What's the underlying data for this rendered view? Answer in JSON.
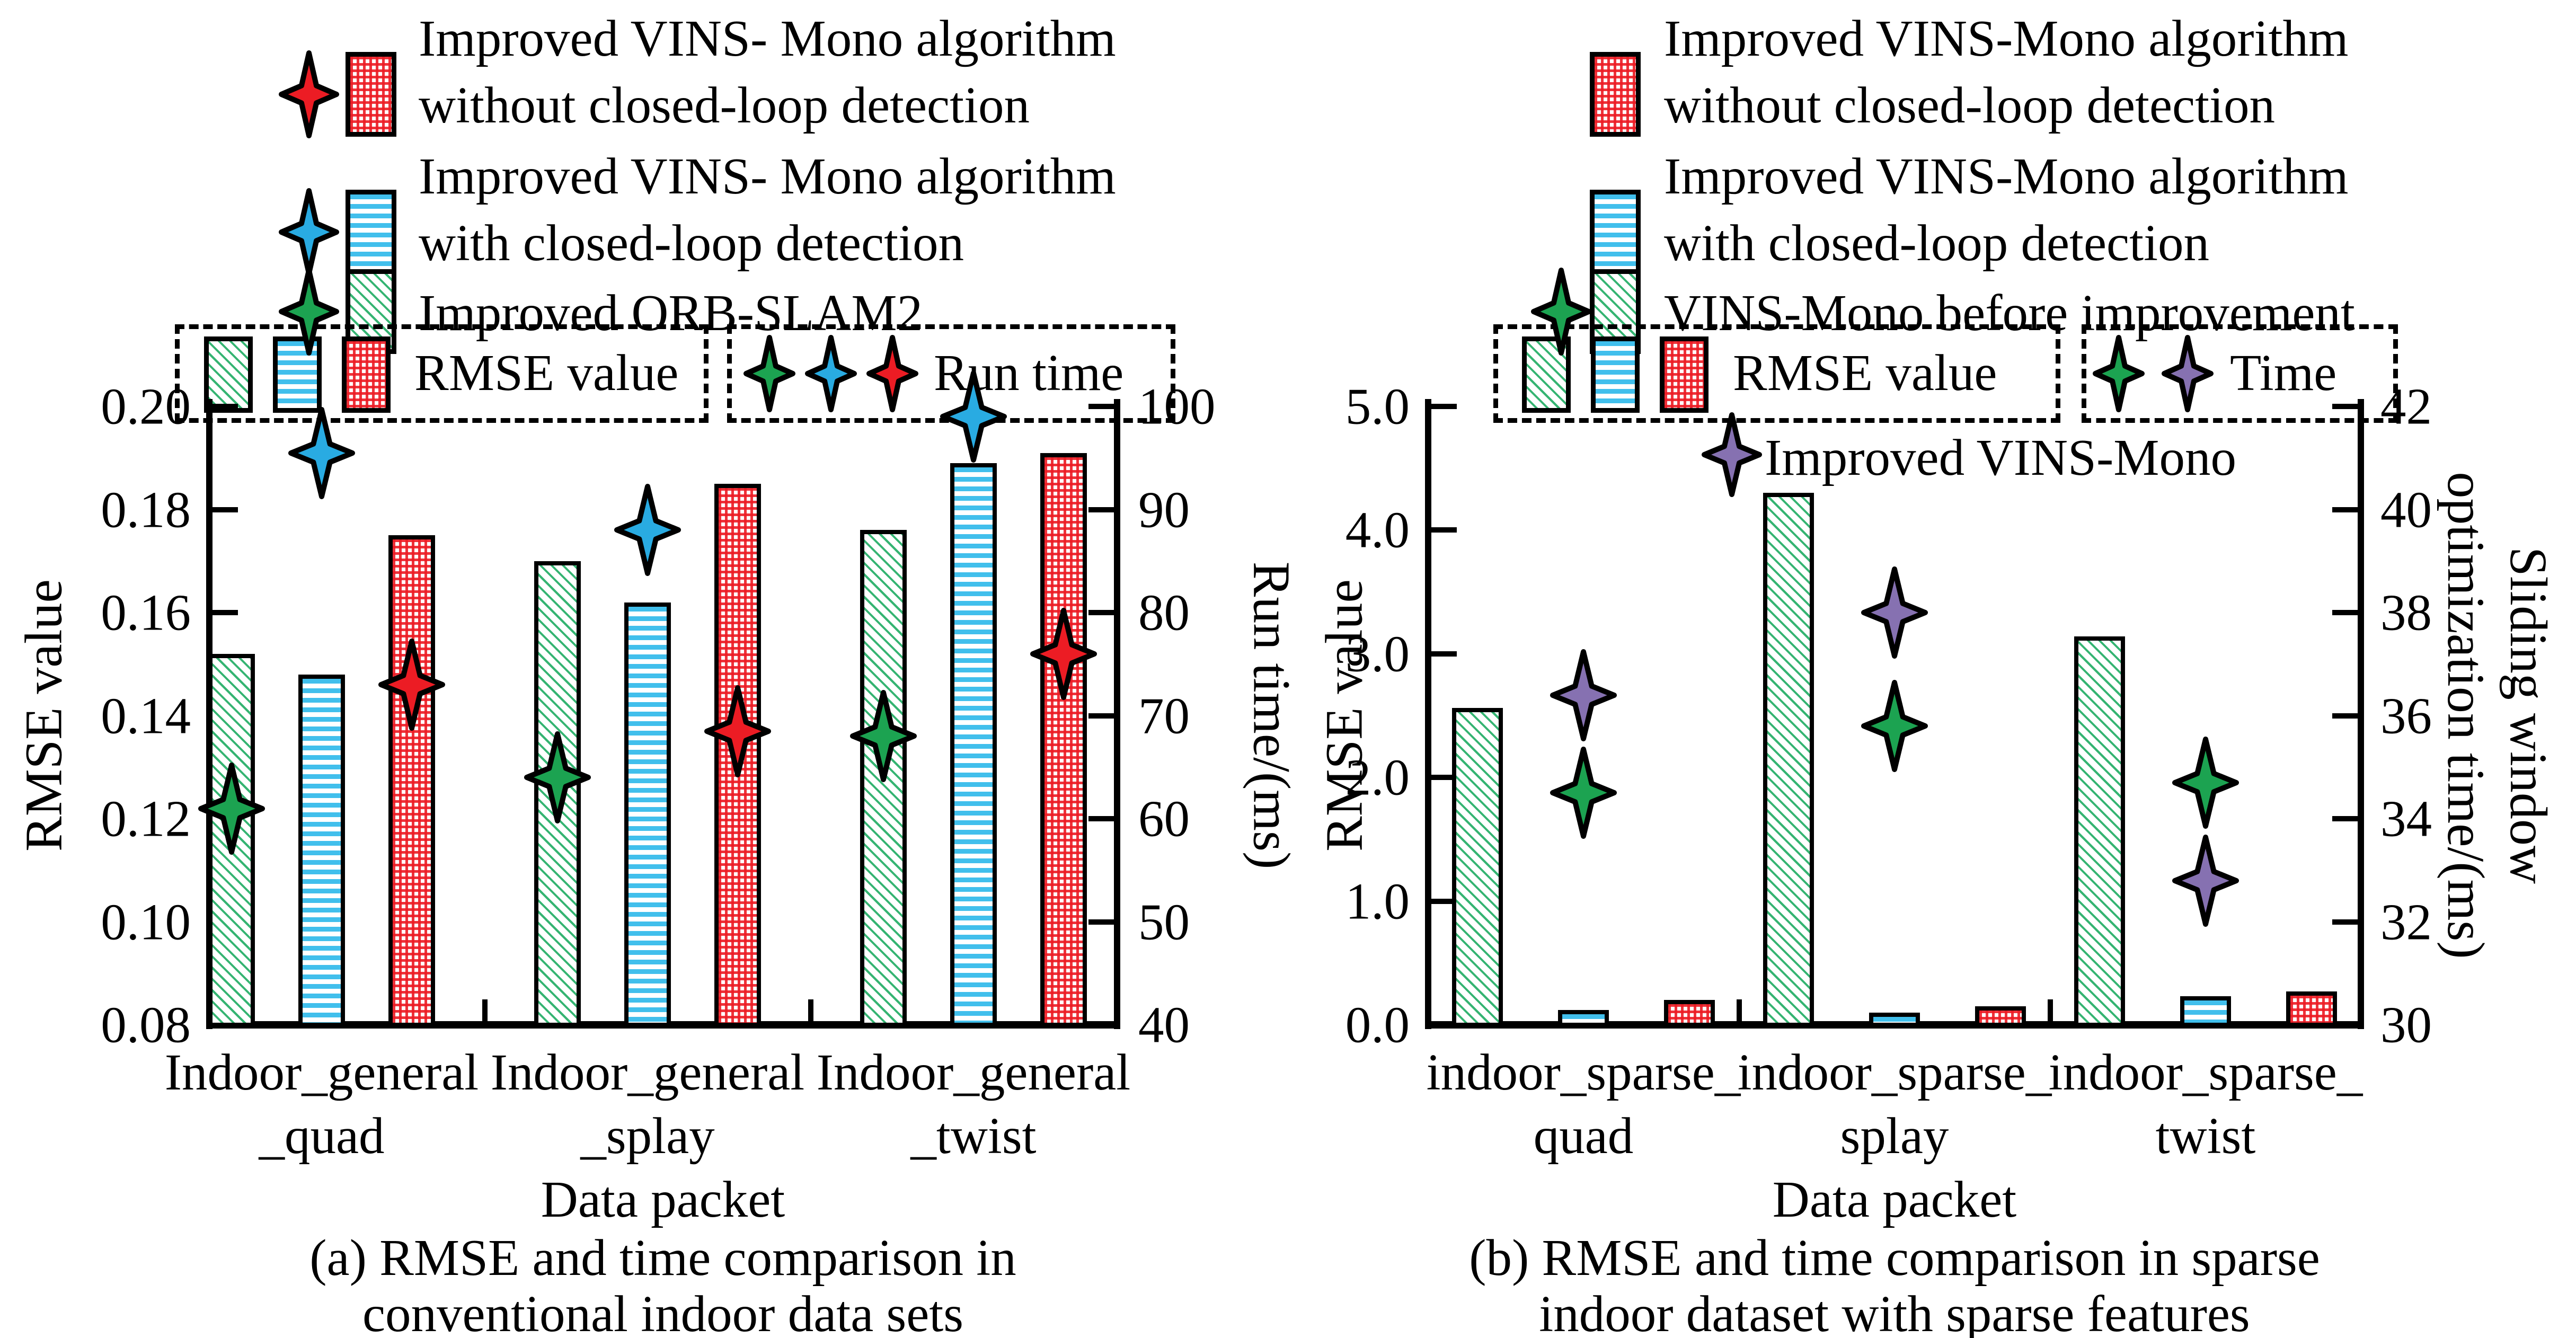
{
  "figure": {
    "background": "#ffffff",
    "colors": {
      "green": "#1ca351",
      "cyan": "#35b9e9",
      "red": "#ec1c24",
      "blue": "#29abe2",
      "purple": "#8671b1"
    }
  },
  "panel_a": {
    "legend": [
      {
        "symbol": "red-star-and-red-crosshatch-swatch",
        "line1": "Improved VINS- Mono algorithm",
        "line2": "without closed-loop detection"
      },
      {
        "symbol": "blue-star-and-cyan-swatch",
        "line1": "Improved VINS- Mono algorithm",
        "line2": "with closed-loop detection"
      },
      {
        "symbol": "green-star-and-green-swatch",
        "line1": "Improved ORB-SLAM2",
        "line2": ""
      }
    ],
    "rmse_box_label": "RMSE value",
    "time_box_label": "Run time",
    "caption_line1": "(a) RMSE and time comparison in",
    "caption_line2": "conventional indoor data sets"
  },
  "panel_b": {
    "legend": [
      {
        "symbol": "red-crosshatch-swatch",
        "line1": "Improved VINS-Mono algorithm",
        "line2": "without closed-loop detection"
      },
      {
        "symbol": "cyan-swatch",
        "line1": "Improved VINS-Mono algorithm",
        "line2": "with closed-loop detection"
      },
      {
        "symbol": "green-star-and-green-swatch",
        "line1": "VINS-Mono before improvement",
        "line2": ""
      }
    ],
    "rmse_box_label": "RMSE value",
    "time_box_label": "Time",
    "purple_star_label": "Improved VINS-Mono",
    "caption_line1": "(b) RMSE and time comparison in sparse",
    "caption_line2": "indoor dataset with sparse features"
  },
  "chart_data": [
    {
      "type": "bar",
      "panel": "a",
      "title": "(a) RMSE and time comparison in conventional indoor data sets",
      "categories": [
        "Indoor_general_quad",
        "Indoor_general_splay",
        "Indoor_general_twist"
      ],
      "xtick_lines": [
        [
          "Indoor_general",
          "_quad"
        ],
        [
          "Indoor_general",
          "_splay"
        ],
        [
          "Indoor_general",
          "_twist"
        ]
      ],
      "xlabel": "Data packet",
      "ylabel_left": "RMSE value",
      "ylabel_right": "Run time/(ms)",
      "ylim_left": [
        0.08,
        0.2
      ],
      "ylim_right": [
        40,
        100
      ],
      "yticks_left": [
        "0.20",
        "0.18",
        "0.16",
        "0.14",
        "0.12",
        "0.10",
        "0.08"
      ],
      "yticks_right": [
        "100",
        "90",
        "80",
        "70",
        "60",
        "50",
        "40"
      ],
      "grid": false,
      "bar_series": [
        {
          "name": "Improved ORB-SLAM2 (RMSE value)",
          "style": "green-diagonal",
          "axis": "left",
          "values": [
            0.152,
            0.17,
            0.176
          ]
        },
        {
          "name": "Improved VINS- Mono algorithm with closed-loop detection (RMSE value)",
          "style": "cyan-horizontal",
          "axis": "left",
          "values": [
            0.148,
            0.162,
            0.189
          ]
        },
        {
          "name": "Improved VINS- Mono algorithm without closed-loop detection (RMSE value)",
          "style": "red-crosshatch",
          "axis": "left",
          "values": [
            0.175,
            0.185,
            0.191
          ]
        }
      ],
      "star_series": [
        {
          "name": "Improved ORB-SLAM2 (Run time)",
          "color": "green",
          "axis": "right",
          "values": [
            61,
            64,
            68
          ]
        },
        {
          "name": "Improved VINS- Mono algorithm with closed-loop detection (Run time)",
          "color": "blue",
          "axis": "right",
          "values": [
            95.5,
            88,
            99
          ]
        },
        {
          "name": "Improved VINS- Mono algorithm without closed-loop detection (Run time)",
          "color": "red",
          "axis": "right",
          "values": [
            73,
            68.5,
            76
          ]
        }
      ]
    },
    {
      "type": "bar",
      "panel": "b",
      "title": "(b) RMSE and time comparison in sparse indoor dataset with sparse features",
      "categories": [
        "indoor_sparse_quad",
        "indoor_sparse_splay",
        "indoor_sparse_twist"
      ],
      "xtick_lines": [
        [
          "indoor_sparse_",
          "quad"
        ],
        [
          "indoor_sparse_",
          "splay"
        ],
        [
          "indoor_sparse_",
          "twist"
        ]
      ],
      "xlabel": "Data packet",
      "ylabel_left": "RMSE value",
      "ylabel_right_line1": "Sliding window",
      "ylabel_right_line2": "optimization time/(ms)",
      "ylim_left": [
        0.0,
        5.0
      ],
      "ylim_right": [
        30,
        42
      ],
      "yticks_left": [
        "5.0",
        "4.0",
        "3.0",
        "2.0",
        "1.0",
        "0.0"
      ],
      "yticks_right": [
        "42",
        "40",
        "38",
        "36",
        "34",
        "32",
        "30"
      ],
      "grid": false,
      "bar_series": [
        {
          "name": "VINS-Mono before improvement (RMSE value)",
          "style": "green-diagonal",
          "axis": "left",
          "values": [
            2.56,
            4.3,
            3.14
          ]
        },
        {
          "name": "Improved VINS-Mono algorithm with closed-loop detection (RMSE value)",
          "style": "cyan-horizontal",
          "axis": "left",
          "values": [
            0.12,
            0.1,
            0.23
          ]
        },
        {
          "name": "Improved VINS-Mono algorithm without closed-loop detection (RMSE value)",
          "style": "red-crosshatch",
          "axis": "left",
          "values": [
            0.2,
            0.15,
            0.27
          ]
        }
      ],
      "star_series": [
        {
          "name": "VINS-Mono before improvement (Time)",
          "color": "green",
          "axis": "right",
          "values": [
            34.5,
            35.8,
            34.7
          ]
        },
        {
          "name": "Improved VINS-Mono (Time)",
          "color": "purple",
          "axis": "right",
          "values": [
            36.4,
            38.0,
            32.8
          ]
        }
      ]
    }
  ]
}
